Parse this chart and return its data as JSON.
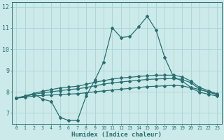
{
  "xlabel": "Humidex (Indice chaleur)",
  "bg_color": "#cceaea",
  "grid_color": "#aad4d4",
  "line_color": "#2a7070",
  "xlim": [
    -0.5,
    23.5
  ],
  "ylim": [
    6.5,
    12.2
  ],
  "xticks": [
    0,
    1,
    2,
    3,
    4,
    5,
    6,
    7,
    8,
    9,
    10,
    11,
    12,
    13,
    14,
    15,
    16,
    17,
    18,
    19,
    20,
    21,
    22,
    23
  ],
  "yticks": [
    7,
    8,
    9,
    10,
    11,
    12
  ],
  "x": [
    0,
    1,
    2,
    3,
    4,
    5,
    6,
    7,
    8,
    9,
    10,
    11,
    12,
    13,
    14,
    15,
    16,
    17,
    18,
    19,
    20,
    21,
    22,
    23
  ],
  "line1": [
    7.7,
    7.8,
    7.9,
    7.65,
    7.55,
    6.8,
    6.65,
    6.65,
    7.8,
    8.55,
    9.4,
    11.0,
    10.55,
    10.6,
    11.05,
    11.55,
    10.9,
    9.6,
    8.7,
    8.5,
    8.2,
    8.1,
    8.0,
    7.85
  ],
  "line2": [
    7.7,
    7.8,
    7.92,
    8.02,
    8.1,
    8.18,
    8.22,
    8.26,
    8.35,
    8.45,
    8.52,
    8.6,
    8.65,
    8.68,
    8.72,
    8.75,
    8.78,
    8.78,
    8.78,
    8.7,
    8.5,
    8.2,
    8.05,
    7.9
  ],
  "line3": [
    7.7,
    7.78,
    7.88,
    7.95,
    8.0,
    8.05,
    8.1,
    8.14,
    8.2,
    8.28,
    8.36,
    8.42,
    8.46,
    8.5,
    8.54,
    8.58,
    8.6,
    8.62,
    8.62,
    8.58,
    8.42,
    8.12,
    7.98,
    7.88
  ],
  "line4": [
    7.7,
    7.74,
    7.8,
    7.83,
    7.85,
    7.87,
    7.89,
    7.91,
    7.95,
    8.0,
    8.04,
    8.08,
    8.12,
    8.16,
    8.2,
    8.24,
    8.26,
    8.28,
    8.3,
    8.28,
    8.18,
    7.98,
    7.88,
    7.8
  ]
}
